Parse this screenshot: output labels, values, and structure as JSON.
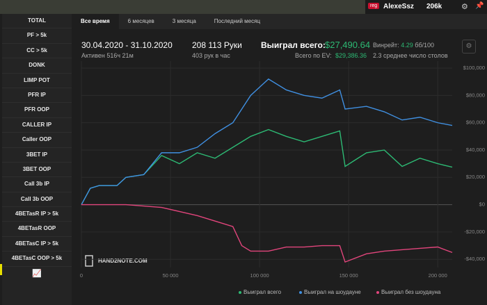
{
  "user": {
    "badge": "reg",
    "name": "AlexeSsz",
    "hands": "206k"
  },
  "sidebar": [
    "TOTAL",
    "PF > 5k",
    "CC > 5k",
    "DONK",
    "LIMP POT",
    "PFR IP",
    "PFR OOP",
    "CALLER IP",
    "Caller OOP",
    "3BET IP",
    "3BET OOP",
    "Call 3b IP",
    "Call 3b OOP",
    "4BETasR IP > 5k",
    "4BETasR OOP",
    "4BETasC IP > 5k",
    "4BETasC OOP > 5k"
  ],
  "tabs": [
    "Все время",
    "6 месяцев",
    "3 месяца",
    "Последний месяц"
  ],
  "stats": {
    "period": "30.04.2020 - 31.10.2020",
    "active": "Активен 516ч 21м",
    "hands": "208 113 Руки",
    "rate": "403 рук в час",
    "won_label": "Выиграл всего:",
    "won": "$27,490.64",
    "ev_label": "Всего по EV:",
    "ev": "$29,386.36",
    "winrate_label": "Винрейт:",
    "winrate": "4.29",
    "winrate_unit": "бб/100",
    "tables": "2.3 среднее число столов"
  },
  "watermark": "HAND2NOTE.COM",
  "chart_data": {
    "type": "line",
    "x": [
      0,
      5000,
      10000,
      20000,
      25000,
      35000,
      45000,
      55000,
      65000,
      75000,
      85000,
      90000,
      95000,
      105000,
      115000,
      125000,
      135000,
      145000,
      148000,
      160000,
      170000,
      180000,
      190000,
      200000,
      208113
    ],
    "series": [
      {
        "name": "Выиграл всего",
        "color": "#2dba74",
        "values": [
          0,
          12000,
          14000,
          14000,
          20000,
          22000,
          36000,
          30000,
          38000,
          34000,
          42000,
          46000,
          50000,
          55000,
          50000,
          46000,
          50000,
          54000,
          28000,
          38000,
          40000,
          28000,
          34000,
          30000,
          27490
        ]
      },
      {
        "name": "Выиграл на шоудауне",
        "color": "#4090e2",
        "values": [
          0,
          12000,
          14000,
          14000,
          20000,
          22000,
          38000,
          38000,
          42000,
          52000,
          60000,
          70000,
          80000,
          92000,
          84000,
          80000,
          78000,
          84000,
          70000,
          72000,
          68000,
          62000,
          64000,
          60000,
          58000
        ]
      },
      {
        "name": "Выиграл без шоудауна",
        "color": "#e2457c",
        "values": [
          0,
          0,
          0,
          0,
          0,
          -1000,
          -2000,
          -5000,
          -8000,
          -12000,
          -16000,
          -30000,
          -34000,
          -34000,
          -31000,
          -31000,
          -30000,
          -30000,
          -42000,
          -36000,
          -34000,
          -33000,
          -32000,
          -31000,
          -35000
        ]
      }
    ],
    "xlim": [
      0,
      208113
    ],
    "xticks": [
      0,
      {
        "value": 50000,
        "label": "50 000"
      },
      {
        "value": 100000,
        "label": "100 000"
      },
      {
        "value": 150000,
        "label": "150 000"
      },
      {
        "value": 200000,
        "label": "200 000"
      }
    ],
    "ylim": [
      -46000,
      100000
    ],
    "yticks": [
      {
        "value": 100000,
        "label": "$100,000"
      },
      {
        "value": 80000,
        "label": "$80,000"
      },
      {
        "value": 60000,
        "label": "$60,000"
      },
      {
        "value": 40000,
        "label": "$40,000"
      },
      {
        "value": 20000,
        "label": "$20,000"
      },
      {
        "value": 0,
        "label": "$0"
      },
      {
        "value": -20000,
        "label": "-$20,000"
      },
      {
        "value": -40000,
        "label": "-$40,000"
      }
    ],
    "grid": true
  }
}
